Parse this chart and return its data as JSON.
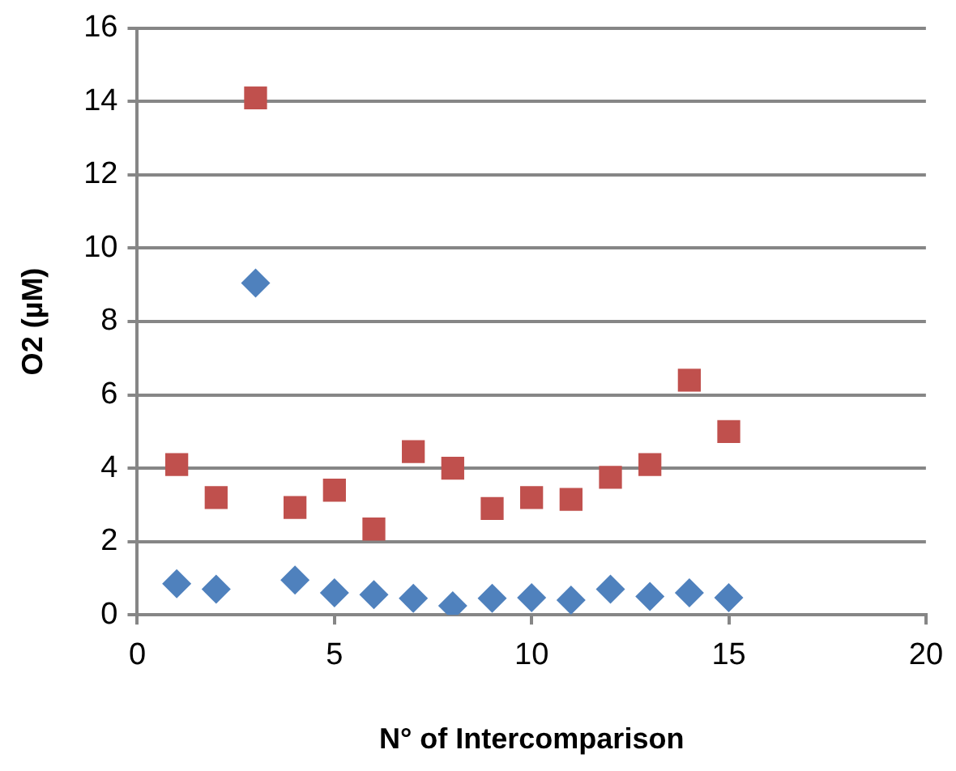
{
  "chart_data": {
    "type": "scatter",
    "xlabel": "N° of Intercomparison",
    "ylabel": "O2 (µM)",
    "xlim": [
      0,
      20
    ],
    "xticks": [
      0,
      5,
      10,
      15,
      20
    ],
    "ylim": [
      0,
      16
    ],
    "yticks": [
      0,
      2,
      4,
      6,
      8,
      10,
      12,
      14,
      16
    ],
    "grid": "y",
    "legend": false,
    "x": [
      1,
      2,
      3,
      4,
      5,
      6,
      7,
      8,
      9,
      10,
      11,
      12,
      13,
      14,
      15
    ],
    "series": [
      {
        "color": "#4f81bd",
        "marker": "diamond",
        "values": [
          0.85,
          0.7,
          9.05,
          0.95,
          0.6,
          0.55,
          0.45,
          0.25,
          0.45,
          0.47,
          0.4,
          0.7,
          0.5,
          0.6,
          0.47
        ]
      },
      {
        "color": "#c0504d",
        "marker": "square",
        "values": [
          4.1,
          3.2,
          14.1,
          2.93,
          3.4,
          2.34,
          4.45,
          4.0,
          2.9,
          3.2,
          3.15,
          3.75,
          4.1,
          6.4,
          5.0
        ]
      }
    ]
  }
}
